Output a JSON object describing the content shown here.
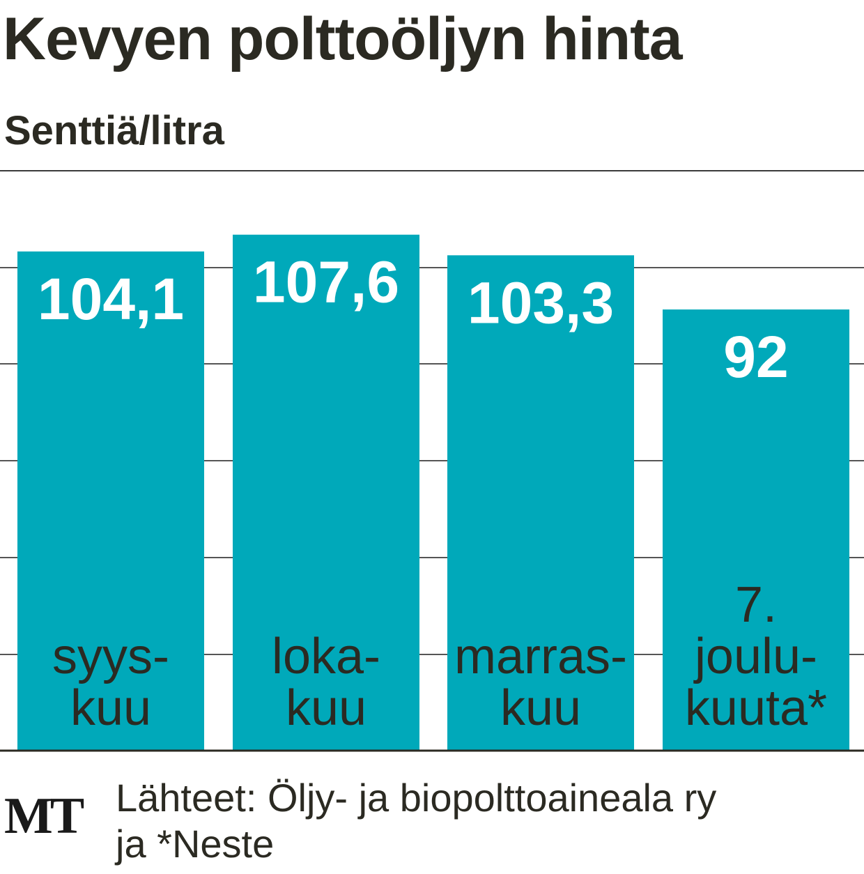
{
  "title": "Kevyen polttoöljyn hinta",
  "subtitle": "Senttiä/litra",
  "colors": {
    "bar": "#00a9ba",
    "value_text": "#ffffff",
    "label_text": "#2b2a22",
    "gridline": "#555555"
  },
  "chart_data": {
    "type": "bar",
    "title": "Kevyen polttoöljyn hinta",
    "ylabel": "Senttiä/litra",
    "categories": [
      [
        "syys-",
        "kuu"
      ],
      [
        "loka-",
        "kuu"
      ],
      [
        "marras-",
        "kuu"
      ],
      [
        "7.",
        "joulu-",
        "kuuta*"
      ]
    ],
    "values": [
      104.1,
      107.6,
      103.3,
      92
    ],
    "value_labels": [
      "104,1",
      "107,6",
      "103,3",
      "92"
    ],
    "ylim": [
      0,
      110
    ],
    "grid": true
  },
  "footer": {
    "logo": "MT",
    "source_line1": "Lähteet: Öljy- ja biopolttoaineala ry",
    "source_line2": "ja *Neste"
  }
}
